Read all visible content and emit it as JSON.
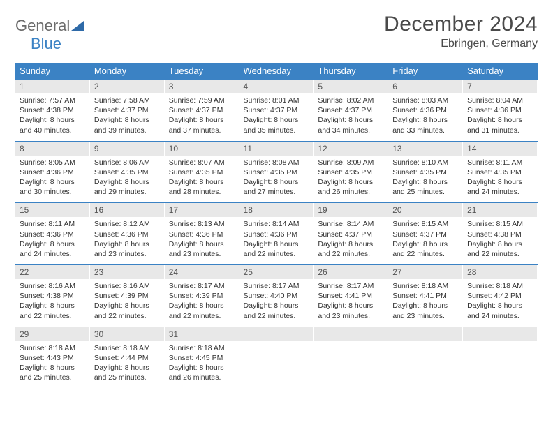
{
  "logo": {
    "word1": "General",
    "word2": "Blue",
    "triangle_color": "#2e6aa8"
  },
  "header": {
    "title": "December 2024",
    "location": "Ebringen, Germany"
  },
  "colors": {
    "header_bg": "#3b82c4",
    "header_text": "#ffffff",
    "daynum_bg": "#e8e8e8",
    "cell_border": "#3b82c4",
    "body_text": "#333333",
    "logo_grey": "#6b6b6b",
    "logo_blue": "#3b82c4"
  },
  "typography": {
    "title_fontsize": 30,
    "location_fontsize": 16,
    "dayheader_fontsize": 13,
    "daynum_fontsize": 12,
    "content_fontsize": 10.5
  },
  "layout": {
    "columns": 7,
    "rows": 5,
    "first_day_column": 0,
    "days_in_month": 31
  },
  "day_names": [
    "Sunday",
    "Monday",
    "Tuesday",
    "Wednesday",
    "Thursday",
    "Friday",
    "Saturday"
  ],
  "days": [
    {
      "n": 1,
      "sunrise": "7:57 AM",
      "sunset": "4:38 PM",
      "daylight": "8 hours and 40 minutes."
    },
    {
      "n": 2,
      "sunrise": "7:58 AM",
      "sunset": "4:37 PM",
      "daylight": "8 hours and 39 minutes."
    },
    {
      "n": 3,
      "sunrise": "7:59 AM",
      "sunset": "4:37 PM",
      "daylight": "8 hours and 37 minutes."
    },
    {
      "n": 4,
      "sunrise": "8:01 AM",
      "sunset": "4:37 PM",
      "daylight": "8 hours and 35 minutes."
    },
    {
      "n": 5,
      "sunrise": "8:02 AM",
      "sunset": "4:37 PM",
      "daylight": "8 hours and 34 minutes."
    },
    {
      "n": 6,
      "sunrise": "8:03 AM",
      "sunset": "4:36 PM",
      "daylight": "8 hours and 33 minutes."
    },
    {
      "n": 7,
      "sunrise": "8:04 AM",
      "sunset": "4:36 PM",
      "daylight": "8 hours and 31 minutes."
    },
    {
      "n": 8,
      "sunrise": "8:05 AM",
      "sunset": "4:36 PM",
      "daylight": "8 hours and 30 minutes."
    },
    {
      "n": 9,
      "sunrise": "8:06 AM",
      "sunset": "4:35 PM",
      "daylight": "8 hours and 29 minutes."
    },
    {
      "n": 10,
      "sunrise": "8:07 AM",
      "sunset": "4:35 PM",
      "daylight": "8 hours and 28 minutes."
    },
    {
      "n": 11,
      "sunrise": "8:08 AM",
      "sunset": "4:35 PM",
      "daylight": "8 hours and 27 minutes."
    },
    {
      "n": 12,
      "sunrise": "8:09 AM",
      "sunset": "4:35 PM",
      "daylight": "8 hours and 26 minutes."
    },
    {
      "n": 13,
      "sunrise": "8:10 AM",
      "sunset": "4:35 PM",
      "daylight": "8 hours and 25 minutes."
    },
    {
      "n": 14,
      "sunrise": "8:11 AM",
      "sunset": "4:35 PM",
      "daylight": "8 hours and 24 minutes."
    },
    {
      "n": 15,
      "sunrise": "8:11 AM",
      "sunset": "4:36 PM",
      "daylight": "8 hours and 24 minutes."
    },
    {
      "n": 16,
      "sunrise": "8:12 AM",
      "sunset": "4:36 PM",
      "daylight": "8 hours and 23 minutes."
    },
    {
      "n": 17,
      "sunrise": "8:13 AM",
      "sunset": "4:36 PM",
      "daylight": "8 hours and 23 minutes."
    },
    {
      "n": 18,
      "sunrise": "8:14 AM",
      "sunset": "4:36 PM",
      "daylight": "8 hours and 22 minutes."
    },
    {
      "n": 19,
      "sunrise": "8:14 AM",
      "sunset": "4:37 PM",
      "daylight": "8 hours and 22 minutes."
    },
    {
      "n": 20,
      "sunrise": "8:15 AM",
      "sunset": "4:37 PM",
      "daylight": "8 hours and 22 minutes."
    },
    {
      "n": 21,
      "sunrise": "8:15 AM",
      "sunset": "4:38 PM",
      "daylight": "8 hours and 22 minutes."
    },
    {
      "n": 22,
      "sunrise": "8:16 AM",
      "sunset": "4:38 PM",
      "daylight": "8 hours and 22 minutes."
    },
    {
      "n": 23,
      "sunrise": "8:16 AM",
      "sunset": "4:39 PM",
      "daylight": "8 hours and 22 minutes."
    },
    {
      "n": 24,
      "sunrise": "8:17 AM",
      "sunset": "4:39 PM",
      "daylight": "8 hours and 22 minutes."
    },
    {
      "n": 25,
      "sunrise": "8:17 AM",
      "sunset": "4:40 PM",
      "daylight": "8 hours and 22 minutes."
    },
    {
      "n": 26,
      "sunrise": "8:17 AM",
      "sunset": "4:41 PM",
      "daylight": "8 hours and 23 minutes."
    },
    {
      "n": 27,
      "sunrise": "8:18 AM",
      "sunset": "4:41 PM",
      "daylight": "8 hours and 23 minutes."
    },
    {
      "n": 28,
      "sunrise": "8:18 AM",
      "sunset": "4:42 PM",
      "daylight": "8 hours and 24 minutes."
    },
    {
      "n": 29,
      "sunrise": "8:18 AM",
      "sunset": "4:43 PM",
      "daylight": "8 hours and 25 minutes."
    },
    {
      "n": 30,
      "sunrise": "8:18 AM",
      "sunset": "4:44 PM",
      "daylight": "8 hours and 25 minutes."
    },
    {
      "n": 31,
      "sunrise": "8:18 AM",
      "sunset": "4:45 PM",
      "daylight": "8 hours and 26 minutes."
    }
  ],
  "labels": {
    "sunrise": "Sunrise:",
    "sunset": "Sunset:",
    "daylight": "Daylight:"
  }
}
